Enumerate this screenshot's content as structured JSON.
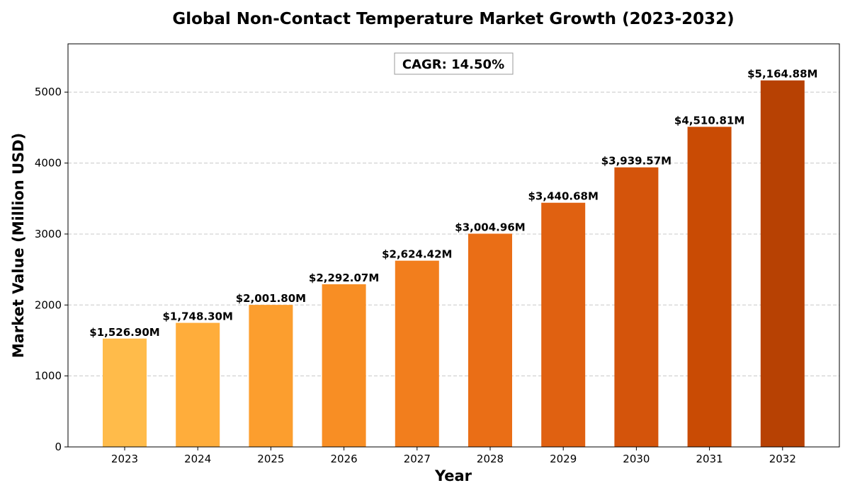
{
  "chart_data": {
    "type": "bar",
    "title": "Global Non-Contact Temperature Market Growth (2023-2032)",
    "xlabel": "Year",
    "ylabel": "Market Value (Million USD)",
    "categories": [
      "2023",
      "2024",
      "2025",
      "2026",
      "2027",
      "2028",
      "2029",
      "2030",
      "2031",
      "2032"
    ],
    "values": [
      1526.9,
      1748.3,
      2001.8,
      2292.07,
      2624.42,
      3004.96,
      3440.68,
      3939.57,
      4510.81,
      5164.88
    ],
    "data_labels": [
      "$1,526.90M",
      "$1,748.30M",
      "$2,001.80M",
      "$2,292.07M",
      "$2,624.42M",
      "$3,004.96M",
      "$3,440.68M",
      "$3,939.57M",
      "$4,510.81M",
      "$5,164.88M"
    ],
    "colors": [
      "#FFBB4A",
      "#FFAD3B",
      "#FC9E2E",
      "#F88E24",
      "#F27E1D",
      "#EA6E16",
      "#E06111",
      "#D4540B",
      "#C94B04",
      "#B74103"
    ],
    "ylim": [
      0,
      5680
    ],
    "yticks": [
      0,
      1000,
      2000,
      3000,
      4000,
      5000
    ],
    "ytick_labels": [
      "0",
      "1000",
      "2000",
      "3000",
      "4000",
      "5000"
    ],
    "grid": "y-dashed",
    "annotation": "CAGR: 14.50%"
  }
}
